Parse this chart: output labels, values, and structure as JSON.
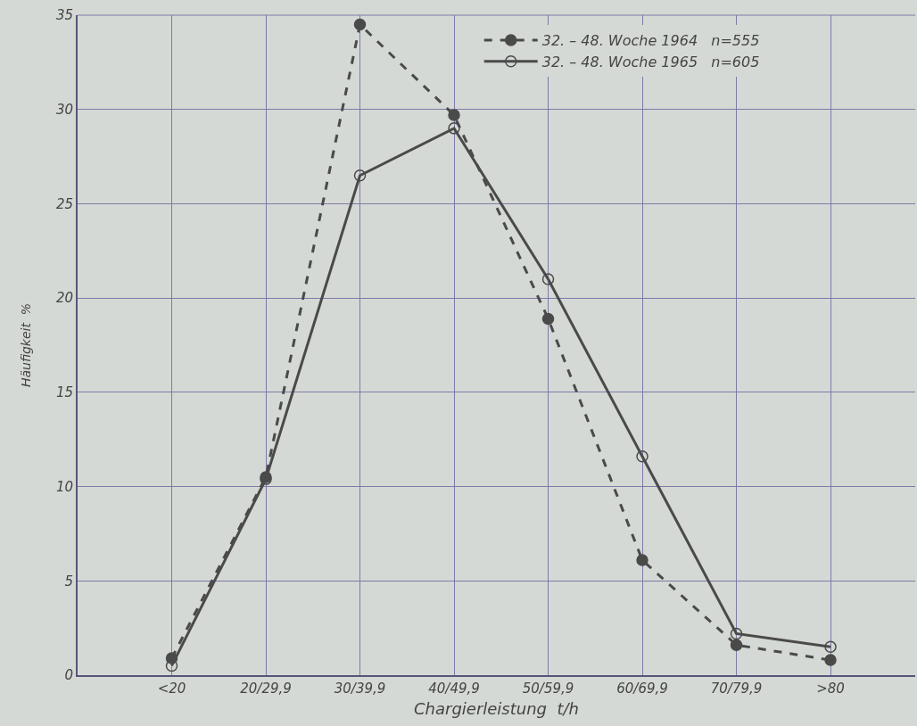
{
  "chart_data": {
    "type": "line",
    "xlabel": "Chargierleistung  t/h",
    "ylabel": "Häufigkeit  %",
    "categories": [
      "<20",
      "20/29,9",
      "30/39,9",
      "40/49,9",
      "50/59,9",
      "60/69,9",
      "70/79,9",
      ">80"
    ],
    "series": [
      {
        "name": "32. – 48. Woche 1964   n=555",
        "color": "#4a4a4a",
        "line_style": "dashed",
        "marker": "circle",
        "values": [
          0.9,
          10.5,
          34.5,
          29.7,
          18.9,
          6.1,
          1.6,
          0.8
        ]
      },
      {
        "name": "32. – 48. Woche 1965   n=605",
        "color": "#4a4a4a",
        "line_style": "solid",
        "marker": "circle-open",
        "values": [
          0.5,
          10.4,
          26.5,
          29.0,
          21.0,
          11.6,
          2.2,
          1.5
        ]
      }
    ],
    "ylim": [
      0,
      35
    ],
    "yticks": [
      0,
      5,
      10,
      15,
      20,
      25,
      30,
      35
    ],
    "grid": true,
    "legend": "top"
  }
}
